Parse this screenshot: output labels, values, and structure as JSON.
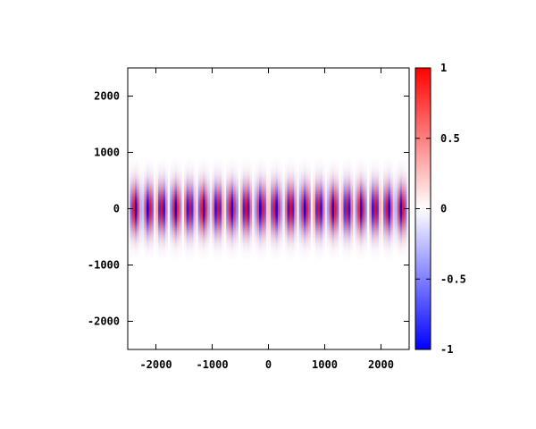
{
  "chart_data": {
    "type": "heatmap",
    "title": "",
    "xlabel": "",
    "ylabel": "",
    "xlim": [
      -2500,
      2500
    ],
    "ylim": [
      -2500,
      2500
    ],
    "x_ticks": [
      -2000,
      -1000,
      0,
      1000,
      2000
    ],
    "x_tick_labels": [
      "-2000",
      "-1000",
      "0",
      "1000",
      "2000"
    ],
    "y_ticks": [
      -2000,
      -1000,
      0,
      1000,
      2000
    ],
    "y_tick_labels": [
      "-2000",
      "-1000",
      "0",
      "1000",
      "2000"
    ],
    "colorbar": {
      "range": [
        -1,
        1
      ],
      "ticks": [
        -1,
        -0.5,
        0,
        0.5,
        1
      ],
      "tick_labels": [
        "-1",
        "-0.5",
        "0",
        "0.5",
        "1"
      ],
      "colors": {
        "min": "#0000ff",
        "mid": "#ffffff",
        "max": "#ff0000"
      }
    },
    "field": {
      "description_values": "cos(k*x) * exp(-(y/w)^2)",
      "wave_period_x": 100,
      "envelope_halfwidth_y": 420,
      "band_extent_y": [
        -1000,
        1000
      ]
    },
    "grid": false
  }
}
